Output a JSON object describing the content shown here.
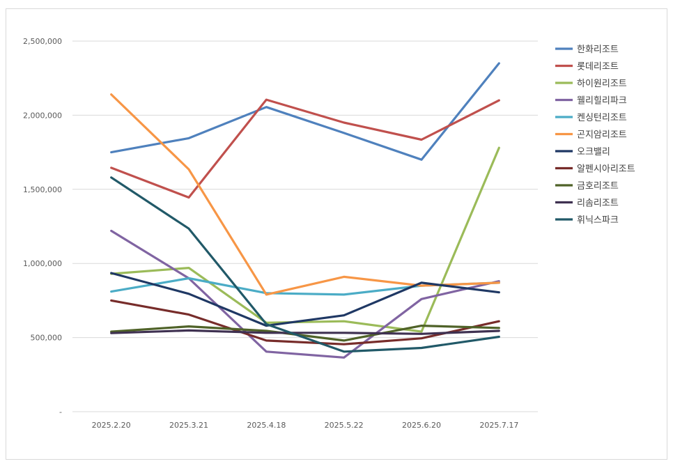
{
  "chart_data": {
    "type": "line",
    "title": "",
    "xlabel": "",
    "ylabel": "",
    "categories": [
      "2025.2.20",
      "2025.3.21",
      "2025.4.18",
      "2025.5.22",
      "2025.6.20",
      "2025.7.17"
    ],
    "ylim": [
      0,
      2500000
    ],
    "y_ticks": [
      0,
      500000,
      1000000,
      1500000,
      2000000,
      2500000
    ],
    "y_tick_labels": [
      "-",
      "500,000",
      "1,000,000",
      "1,500,000",
      "2,000,000",
      "2,500,000"
    ],
    "grid": "horizontal",
    "legend_position": "right",
    "series": [
      {
        "name": "한화리조트",
        "color": "#4f81bd",
        "values": [
          1750000,
          1845000,
          2055000,
          1880000,
          1700000,
          2350000
        ]
      },
      {
        "name": "롯데리조트",
        "color": "#c0504d",
        "values": [
          1645000,
          1445000,
          2105000,
          1950000,
          1835000,
          2100000
        ]
      },
      {
        "name": "하이원리조트",
        "color": "#9bbb59",
        "values": [
          930000,
          970000,
          600000,
          610000,
          540000,
          1780000
        ]
      },
      {
        "name": "웰리힐리파크",
        "color": "#8064a2",
        "values": [
          1220000,
          900000,
          405000,
          365000,
          760000,
          880000
        ]
      },
      {
        "name": "켄싱턴리조트",
        "color": "#4bacc6",
        "values": [
          810000,
          900000,
          800000,
          790000,
          850000,
          870000
        ]
      },
      {
        "name": "곤지암리조트",
        "color": "#f79646",
        "values": [
          2140000,
          1635000,
          790000,
          910000,
          850000,
          870000
        ]
      },
      {
        "name": "오크밸리",
        "color": "#1f3864",
        "values": [
          935000,
          795000,
          580000,
          650000,
          870000,
          805000
        ]
      },
      {
        "name": "알펜시아리조트",
        "color": "#772c2a",
        "values": [
          750000,
          655000,
          480000,
          455000,
          495000,
          610000
        ]
      },
      {
        "name": "금호리조트",
        "color": "#4f6228",
        "values": [
          540000,
          575000,
          545000,
          480000,
          580000,
          565000
        ]
      },
      {
        "name": "리솜리조트",
        "color": "#3f3151",
        "values": [
          530000,
          548000,
          532000,
          532000,
          525000,
          545000
        ]
      },
      {
        "name": "휘닉스파크",
        "color": "#215968",
        "values": [
          1580000,
          1235000,
          590000,
          405000,
          430000,
          505000
        ]
      }
    ]
  }
}
